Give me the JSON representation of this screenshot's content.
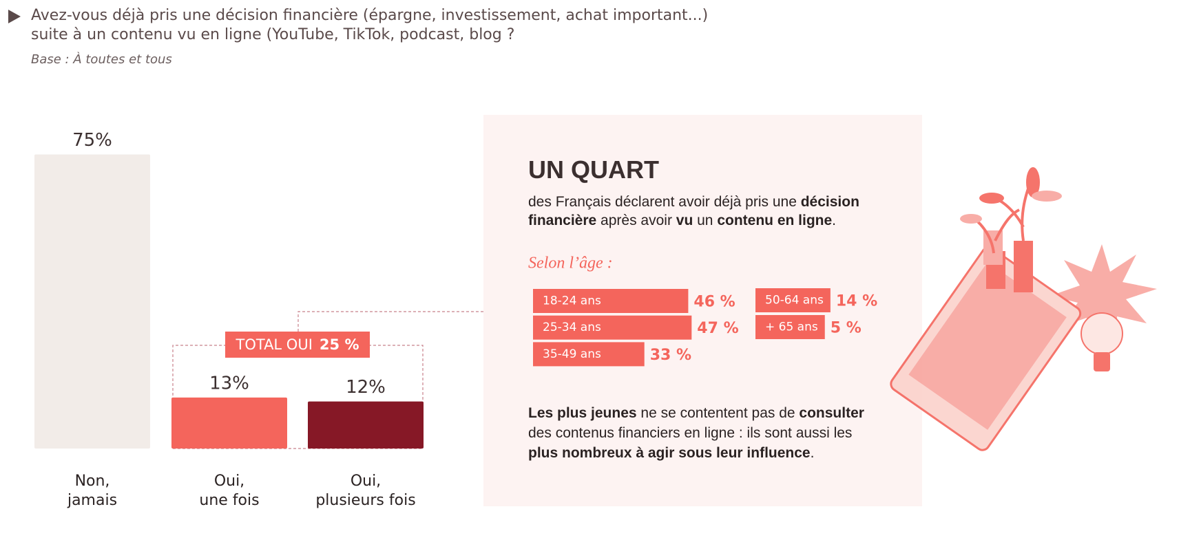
{
  "header": {
    "title": "Avez-vous déjà pris une décision financière (épargne, investissement, achat important...)\nsuite à un contenu vu en ligne (YouTube, TikTok, podcast, blog ?",
    "base": "Base : À toutes et tous"
  },
  "chart_data": [
    {
      "type": "bar",
      "categories": [
        "Non,\njamais",
        "Oui,\nune fois",
        "Oui,\nplusieurs fois"
      ],
      "values": [
        75,
        13,
        12
      ],
      "value_labels": [
        "75%",
        "13%",
        "12%"
      ],
      "colors": [
        "#f2ece8",
        "#f4655c",
        "#861826"
      ],
      "total": {
        "label": "TOTAL OUI",
        "value": 25,
        "value_label": "25 %"
      }
    },
    {
      "type": "hbar",
      "title": "Selon l’âge :",
      "categories": [
        "18-24 ans",
        "25-34 ans",
        "35-49 ans",
        "50-64 ans",
        "+ 65 ans"
      ],
      "values": [
        46,
        47,
        33,
        14,
        5
      ],
      "value_labels": [
        "46 %",
        "47 %",
        "33 %",
        "14 %",
        "5 %"
      ],
      "color": "#f4655c"
    }
  ],
  "panel": {
    "heading": "UN QUART",
    "intro": [
      {
        "text": "des Français déclarent avoir déjà pris une ",
        "bold": false
      },
      {
        "text": "décision financière",
        "bold": true
      },
      {
        "text": " après avoir ",
        "bold": false
      },
      {
        "text": "vu",
        "bold": true
      },
      {
        "text": " un ",
        "bold": false
      },
      {
        "text": "contenu en ligne",
        "bold": true
      },
      {
        "text": ".",
        "bold": false
      }
    ],
    "conclusion": [
      {
        "text": "Les plus jeunes",
        "bold": true
      },
      {
        "text": " ne se contentent pas de ",
        "bold": false
      },
      {
        "text": "consulter",
        "bold": true
      },
      {
        "text": " des contenus financiers en ligne : ils sont aussi les ",
        "bold": false
      },
      {
        "text": "plus nombreux à agir sous leur influence",
        "bold": true
      },
      {
        "text": ".",
        "bold": false
      }
    ]
  }
}
